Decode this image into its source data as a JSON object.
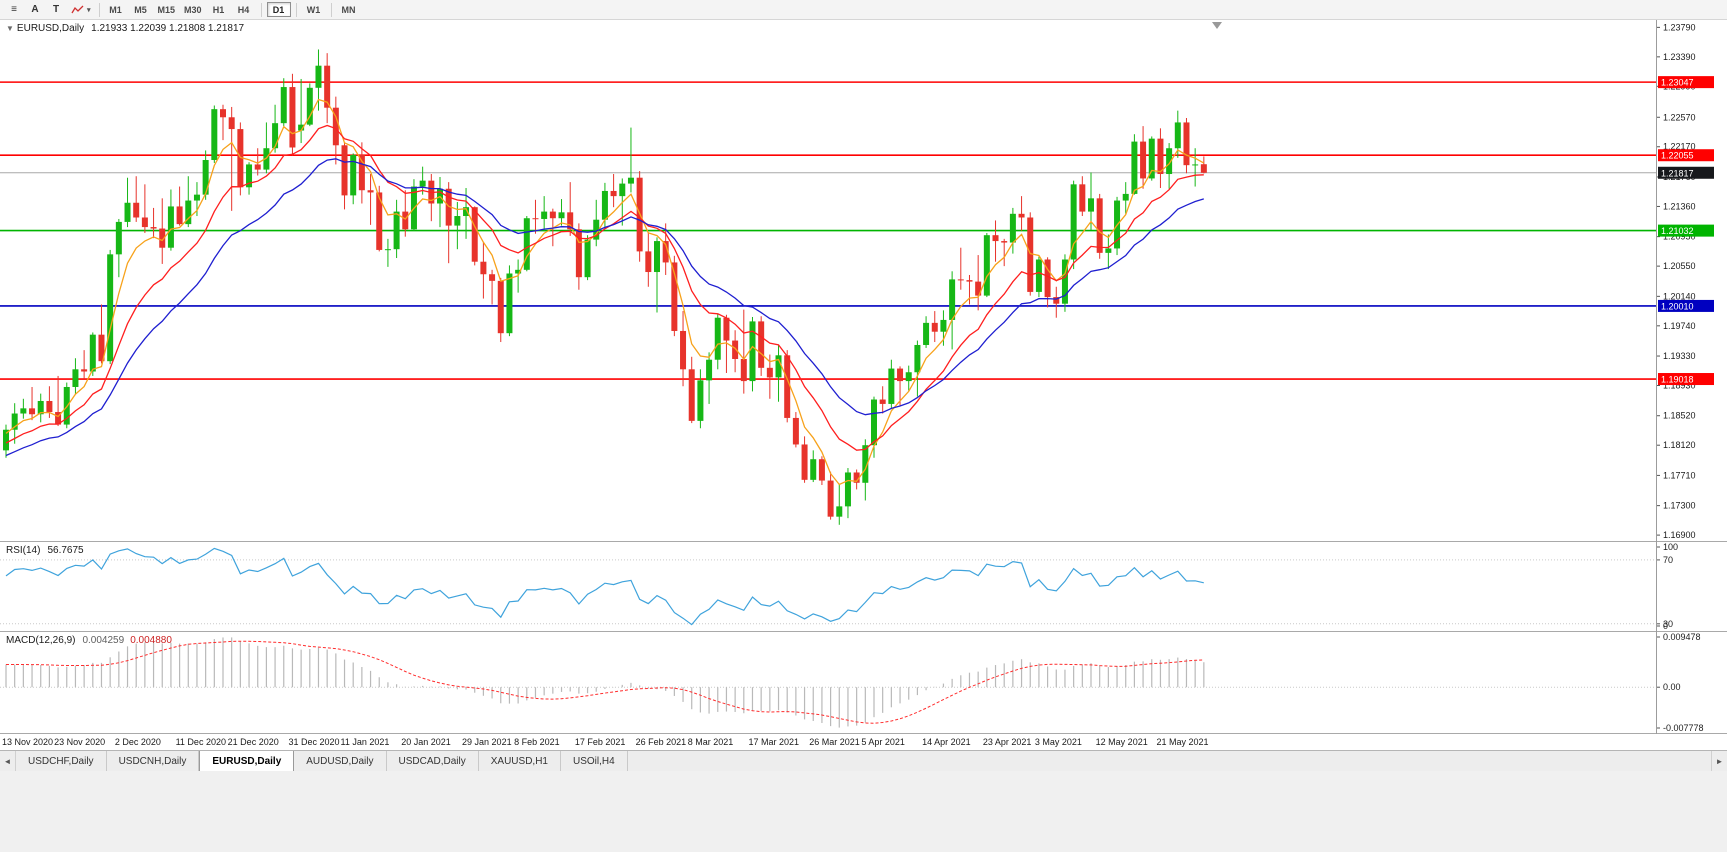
{
  "toolbar": {
    "tools": [
      {
        "id": "chart-commands",
        "glyph": "≡"
      },
      {
        "id": "cursor-tool",
        "glyph": "A"
      },
      {
        "id": "text-tool",
        "glyph": "T"
      },
      {
        "id": "indicators",
        "glyph": "",
        "caret": "▾"
      }
    ],
    "timeframes": [
      {
        "label": "M1"
      },
      {
        "label": "M5"
      },
      {
        "label": "M15"
      },
      {
        "label": "M30"
      },
      {
        "label": "H1"
      },
      {
        "label": "H4"
      },
      {
        "label": "D1",
        "active": true,
        "sep_before": true
      },
      {
        "label": "W1",
        "sep_before": true
      },
      {
        "label": "MN",
        "sep_before": true
      }
    ]
  },
  "chart_header": {
    "collapse": "▼",
    "title": "EURUSD,Daily",
    "ohlc": "1.21933 1.22039 1.21808 1.21817"
  },
  "chart_data": {
    "type": "candlestick",
    "symbol": "EURUSD",
    "timeframe": "Daily",
    "y_range": [
      1.1682,
      1.2389
    ],
    "y_ticks": [
      1.2379,
      1.2339,
      1.2299,
      1.2257,
      1.2217,
      1.2176,
      1.2136,
      1.2095,
      1.2055,
      1.2014,
      1.1974,
      1.1933,
      1.1893,
      1.1852,
      1.1812,
      1.1771,
      1.173,
      1.169
    ],
    "current_price": 1.21817,
    "current_price_label": "1.21817",
    "levels": [
      {
        "price": 1.23047,
        "label": "1.23047",
        "color": "#ff0000"
      },
      {
        "price": 1.22055,
        "label": "1.22055",
        "color": "#ff0000"
      },
      {
        "price": 1.21032,
        "label": "1.21032",
        "color": "#00b400"
      },
      {
        "price": 1.2001,
        "label": "1.20010",
        "color": "#0000c0"
      },
      {
        "price": 1.19018,
        "label": "1.19018",
        "color": "#ff0000"
      }
    ],
    "moving_averages": [
      {
        "period": 5,
        "seed_offset": 0.0005,
        "color": "#f7a21b"
      },
      {
        "period": 12,
        "seed_offset": 0.0018,
        "color": "#ff1f1f"
      },
      {
        "period": 21,
        "seed_offset": 0.0035,
        "color": "#1f1fd0"
      }
    ],
    "colors": {
      "bull": "#16b716",
      "bear": "#e7332b",
      "current_tag": "#17181c",
      "price_line": "#a8a8a8",
      "shift_marker": "#999999",
      "grid_dotted": "#c9c9c9"
    },
    "ohlc": [
      [
        1.1805,
        1.184,
        1.1795,
        1.1833
      ],
      [
        1.1833,
        1.1869,
        1.1814,
        1.1855
      ],
      [
        1.1855,
        1.1875,
        1.1848,
        1.1862
      ],
      [
        1.1862,
        1.1891,
        1.1846,
        1.1854
      ],
      [
        1.1854,
        1.1882,
        1.1843,
        1.1872
      ],
      [
        1.1872,
        1.1892,
        1.1849,
        1.1857
      ],
      [
        1.1857,
        1.1906,
        1.1838,
        1.184
      ],
      [
        1.184,
        1.1897,
        1.1835,
        1.1891
      ],
      [
        1.1891,
        1.193,
        1.1881,
        1.1915
      ],
      [
        1.1915,
        1.1941,
        1.1902,
        1.1912
      ],
      [
        1.1912,
        1.1965,
        1.1906,
        1.1962
      ],
      [
        1.1962,
        1.2003,
        1.1923,
        1.1926
      ],
      [
        1.1926,
        1.2077,
        1.1922,
        1.2071
      ],
      [
        1.2071,
        1.2119,
        1.204,
        1.2115
      ],
      [
        1.2115,
        1.2175,
        1.2108,
        1.2141
      ],
      [
        1.2141,
        1.2177,
        1.2115,
        1.2121
      ],
      [
        1.2121,
        1.2166,
        1.21,
        1.2108
      ],
      [
        1.2108,
        1.2134,
        1.2093,
        1.2106
      ],
      [
        1.2106,
        1.2147,
        1.2058,
        1.208
      ],
      [
        1.208,
        1.2159,
        1.2076,
        1.2136
      ],
      [
        1.2136,
        1.2163,
        1.211,
        1.2112
      ],
      [
        1.2112,
        1.2177,
        1.2108,
        1.2144
      ],
      [
        1.2144,
        1.2169,
        1.2123,
        1.2152
      ],
      [
        1.2152,
        1.2212,
        1.2145,
        1.2199
      ],
      [
        1.2199,
        1.2273,
        1.2195,
        1.2268
      ],
      [
        1.2268,
        1.2274,
        1.2226,
        1.2257
      ],
      [
        1.2257,
        1.2271,
        1.213,
        1.2241
      ],
      [
        1.2241,
        1.225,
        1.2151,
        1.2162
      ],
      [
        1.2162,
        1.2196,
        1.2152,
        1.2193
      ],
      [
        1.2193,
        1.2215,
        1.2178,
        1.2186
      ],
      [
        1.2186,
        1.225,
        1.2181,
        1.2215
      ],
      [
        1.2215,
        1.2274,
        1.2209,
        1.2249
      ],
      [
        1.2249,
        1.231,
        1.2245,
        1.2298
      ],
      [
        1.2298,
        1.2316,
        1.2205,
        1.2216
      ],
      [
        1.2239,
        1.2309,
        1.2222,
        1.2247
      ],
      [
        1.2247,
        1.2303,
        1.2245,
        1.2297
      ],
      [
        1.2297,
        1.2349,
        1.2266,
        1.2327
      ],
      [
        1.2327,
        1.2344,
        1.2249,
        1.227
      ],
      [
        1.227,
        1.2285,
        1.2193,
        1.2219
      ],
      [
        1.2219,
        1.2223,
        1.2132,
        1.2151
      ],
      [
        1.2151,
        1.2208,
        1.2139,
        1.2206
      ],
      [
        1.2206,
        1.2223,
        1.214,
        1.2158
      ],
      [
        1.2158,
        1.218,
        1.2111,
        1.2155
      ],
      [
        1.2155,
        1.2164,
        1.2075,
        1.2077
      ],
      [
        1.2077,
        1.2092,
        1.2054,
        1.2078
      ],
      [
        1.2078,
        1.2145,
        1.2066,
        1.2129
      ],
      [
        1.2129,
        1.2158,
        1.2095,
        1.2105
      ],
      [
        1.2105,
        1.2173,
        1.2103,
        1.2163
      ],
      [
        1.2163,
        1.219,
        1.2152,
        1.2171
      ],
      [
        1.2171,
        1.218,
        1.2116,
        1.214
      ],
      [
        1.214,
        1.2176,
        1.2108,
        1.216
      ],
      [
        1.216,
        1.2169,
        1.2059,
        1.211
      ],
      [
        1.211,
        1.2142,
        1.2078,
        1.2123
      ],
      [
        1.2123,
        1.2161,
        1.2092,
        1.2135
      ],
      [
        1.2135,
        1.2136,
        1.2056,
        1.2061
      ],
      [
        1.2061,
        1.2087,
        1.2011,
        1.2044
      ],
      [
        1.2044,
        1.205,
        1.2003,
        1.2035
      ],
      [
        1.2035,
        1.2039,
        1.1952,
        1.1964
      ],
      [
        1.1964,
        1.2056,
        1.196,
        1.2045
      ],
      [
        1.2045,
        1.2064,
        1.2019,
        1.205
      ],
      [
        1.205,
        1.2123,
        1.2048,
        1.212
      ],
      [
        1.212,
        1.2145,
        1.2099,
        1.2119
      ],
      [
        1.2119,
        1.215,
        1.2102,
        1.2129
      ],
      [
        1.2129,
        1.2133,
        1.2082,
        1.212
      ],
      [
        1.212,
        1.2146,
        1.211,
        1.2128
      ],
      [
        1.2128,
        1.2169,
        1.2096,
        1.2105
      ],
      [
        1.2105,
        1.2113,
        1.2023,
        1.204
      ],
      [
        1.204,
        1.2097,
        1.2036,
        1.2091
      ],
      [
        1.2091,
        1.2145,
        1.2082,
        1.2118
      ],
      [
        1.2118,
        1.2168,
        1.2107,
        1.2157
      ],
      [
        1.2157,
        1.218,
        1.2135,
        1.215
      ],
      [
        1.215,
        1.2174,
        1.211,
        1.2167
      ],
      [
        1.2167,
        1.2243,
        1.2155,
        1.2175
      ],
      [
        1.2175,
        1.2184,
        1.2061,
        1.2075
      ],
      [
        1.2075,
        1.2101,
        1.2027,
        1.2047
      ],
      [
        1.2047,
        1.2094,
        1.1992,
        1.2089
      ],
      [
        1.2089,
        1.2113,
        1.2043,
        1.206
      ],
      [
        1.206,
        1.2069,
        1.196,
        1.1967
      ],
      [
        1.1967,
        1.1994,
        1.1892,
        1.1915
      ],
      [
        1.1915,
        1.1932,
        1.1842,
        1.1845
      ],
      [
        1.1845,
        1.1915,
        1.1835,
        1.19
      ],
      [
        1.19,
        1.1938,
        1.1868,
        1.1928
      ],
      [
        1.1928,
        1.199,
        1.1915,
        1.1985
      ],
      [
        1.1985,
        1.1989,
        1.191,
        1.1954
      ],
      [
        1.1954,
        1.1968,
        1.1911,
        1.1929
      ],
      [
        1.1929,
        1.1996,
        1.1882,
        1.1899
      ],
      [
        1.1899,
        1.1986,
        1.1885,
        1.198
      ],
      [
        1.198,
        1.1987,
        1.1906,
        1.1917
      ],
      [
        1.1917,
        1.1935,
        1.1875,
        1.1904
      ],
      [
        1.1904,
        1.1948,
        1.1871,
        1.1934
      ],
      [
        1.1934,
        1.1941,
        1.1843,
        1.1849
      ],
      [
        1.1849,
        1.1857,
        1.1809,
        1.1813
      ],
      [
        1.1813,
        1.1824,
        1.1761,
        1.1765
      ],
      [
        1.1765,
        1.1805,
        1.1762,
        1.1793
      ],
      [
        1.1793,
        1.1797,
        1.1758,
        1.1764
      ],
      [
        1.1764,
        1.1776,
        1.1711,
        1.1715
      ],
      [
        1.1715,
        1.176,
        1.1704,
        1.1729
      ],
      [
        1.1729,
        1.1781,
        1.1713,
        1.1775
      ],
      [
        1.1775,
        1.1779,
        1.1752,
        1.1761
      ],
      [
        1.1761,
        1.182,
        1.1737,
        1.1812
      ],
      [
        1.1812,
        1.1878,
        1.1795,
        1.1874
      ],
      [
        1.1874,
        1.1892,
        1.1855,
        1.1868
      ],
      [
        1.1868,
        1.1928,
        1.1861,
        1.1916
      ],
      [
        1.1916,
        1.1919,
        1.1866,
        1.1899
      ],
      [
        1.1899,
        1.192,
        1.1886,
        1.1911
      ],
      [
        1.1911,
        1.1954,
        1.1878,
        1.1948
      ],
      [
        1.1948,
        1.1987,
        1.1944,
        1.1978
      ],
      [
        1.1978,
        1.1994,
        1.1952,
        1.1966
      ],
      [
        1.1966,
        1.1995,
        1.1947,
        1.1982
      ],
      [
        1.1982,
        1.2048,
        1.1942,
        1.2037
      ],
      [
        1.2037,
        1.208,
        1.2023,
        1.2036
      ],
      [
        1.2036,
        1.2043,
        1.2003,
        1.2034
      ],
      [
        1.2034,
        1.207,
        1.1995,
        1.2015
      ],
      [
        1.2015,
        1.21,
        1.2013,
        1.2097
      ],
      [
        1.2097,
        1.2117,
        1.2061,
        1.2089
      ],
      [
        1.2089,
        1.2092,
        1.2055,
        1.2087
      ],
      [
        1.2087,
        1.2134,
        1.2072,
        1.2126
      ],
      [
        1.2126,
        1.215,
        1.2103,
        1.2121
      ],
      [
        1.2121,
        1.2128,
        1.2015,
        1.202
      ],
      [
        1.202,
        1.2068,
        1.2013,
        1.2064
      ],
      [
        1.2064,
        1.2067,
        1.1999,
        1.2013
      ],
      [
        1.2013,
        1.2027,
        1.1985,
        1.2004
      ],
      [
        1.2004,
        1.2071,
        1.1993,
        1.2064
      ],
      [
        1.2064,
        1.2171,
        1.2051,
        1.2166
      ],
      [
        1.2166,
        1.2177,
        1.2123,
        1.2129
      ],
      [
        1.2129,
        1.2182,
        1.2104,
        1.2147
      ],
      [
        1.2147,
        1.2153,
        1.2065,
        1.2073
      ],
      [
        1.2073,
        1.2098,
        1.2051,
        1.2079
      ],
      [
        1.2079,
        1.2149,
        1.207,
        1.2144
      ],
      [
        1.2144,
        1.2169,
        1.2126,
        1.2153
      ],
      [
        1.2153,
        1.2234,
        1.2152,
        1.2224
      ],
      [
        1.2224,
        1.2245,
        1.216,
        1.2174
      ],
      [
        1.2174,
        1.2231,
        1.2171,
        1.2228
      ],
      [
        1.2228,
        1.2242,
        1.2161,
        1.218
      ],
      [
        1.218,
        1.2222,
        1.216,
        1.2215
      ],
      [
        1.2215,
        1.2266,
        1.2202,
        1.225
      ],
      [
        1.225,
        1.2256,
        1.2181,
        1.2192
      ],
      [
        1.2192,
        1.2215,
        1.2163,
        1.2193
      ],
      [
        1.21933,
        1.22039,
        1.21808,
        1.21817
      ]
    ],
    "x_labels": [
      [
        "13 Nov 2020",
        0
      ],
      [
        "23 Nov 2020",
        6
      ],
      [
        "2 Dec 2020",
        13
      ],
      [
        "11 Dec 2020",
        20
      ],
      [
        "21 Dec 2020",
        26
      ],
      [
        "31 Dec 2020",
        33
      ],
      [
        "11 Jan 2021",
        39
      ],
      [
        "20 Jan 2021",
        46
      ],
      [
        "29 Jan 2021",
        53
      ],
      [
        "8 Feb 2021",
        59
      ],
      [
        "17 Feb 2021",
        66
      ],
      [
        "26 Feb 2021",
        73
      ],
      [
        "8 Mar 2021",
        79
      ],
      [
        "17 Mar 2021",
        86
      ],
      [
        "26 Mar 2021",
        93
      ],
      [
        "5 Apr 2021",
        99
      ],
      [
        "14 Apr 2021",
        106
      ],
      [
        "23 Apr 2021",
        113
      ],
      [
        "3 May 2021",
        119
      ],
      [
        "12 May 2021",
        126
      ],
      [
        "21 May 2021",
        133
      ]
    ],
    "indicators": {
      "rsi": {
        "label": "RSI(14)",
        "value": "56.7675",
        "period": 14,
        "axis_labels": [
          "100",
          "70",
          "30",
          "0"
        ],
        "levels": [
          70,
          30
        ],
        "color": "#3fa3dc"
      },
      "macd": {
        "label": "MACD(12,26,9)",
        "value_main": "0.004259",
        "value_signal": "0.004880",
        "fast": 12,
        "slow": 26,
        "signal": 9,
        "fast_seed": 0.002,
        "slow_seed": 0.0065,
        "axis_labels": [
          "0.009478",
          "0.00",
          "-0.007778"
        ],
        "hist_color": "#b9b9b9",
        "signal_color": "#ff2d2d"
      }
    }
  },
  "tabs": {
    "left_arrow": "◄",
    "right_arrow": "►",
    "items": [
      {
        "label": "USDCHF,Daily"
      },
      {
        "label": "USDCNH,Daily"
      },
      {
        "label": "EURUSD,Daily",
        "active": true
      },
      {
        "label": "AUDUSD,Daily"
      },
      {
        "label": "USDCAD,Daily"
      },
      {
        "label": "XAUUSD,H1"
      },
      {
        "label": "USOil,H4"
      }
    ]
  }
}
